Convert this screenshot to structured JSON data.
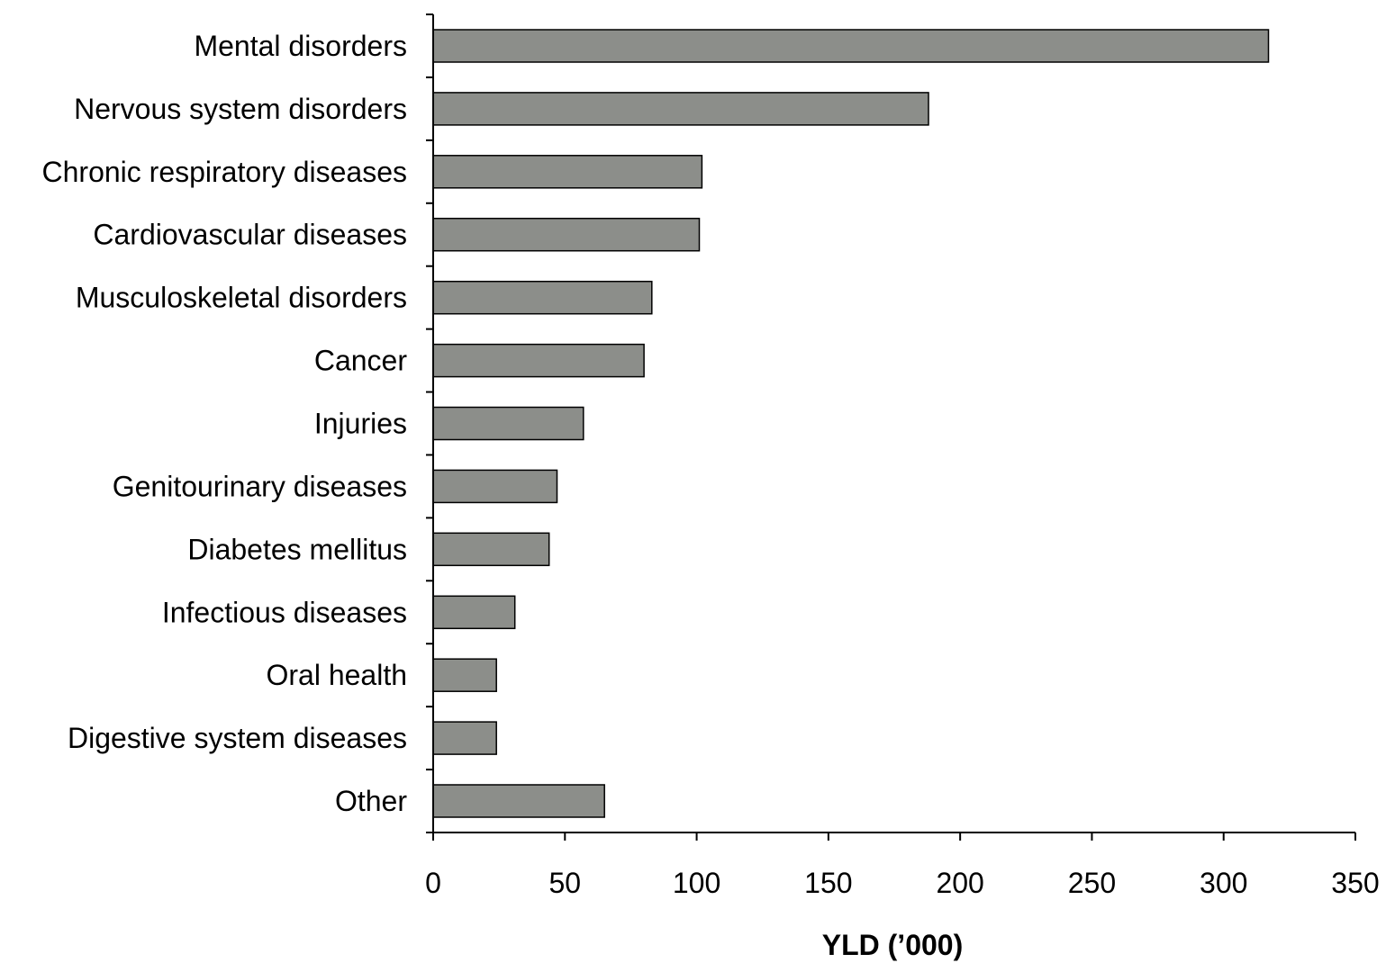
{
  "chart_data": {
    "type": "bar",
    "orientation": "horizontal",
    "categories": [
      "Mental disorders",
      "Nervous system disorders",
      "Chronic respiratory diseases",
      "Cardiovascular diseases",
      "Musculoskeletal disorders",
      "Cancer",
      "Injuries",
      "Genitourinary diseases",
      "Diabetes mellitus",
      "Infectious diseases",
      "Oral health",
      "Digestive system diseases",
      "Other"
    ],
    "values": [
      317,
      188,
      102,
      101,
      83,
      80,
      57,
      47,
      44,
      31,
      24,
      24,
      65
    ],
    "xlabel": "YLD (’000)",
    "ylabel": "",
    "xlim": [
      0,
      350
    ],
    "xticks": [
      "0",
      "50",
      "100",
      "150",
      "200",
      "250",
      "300",
      "350"
    ],
    "grid": false,
    "bar_color": "#8c8e8a"
  }
}
